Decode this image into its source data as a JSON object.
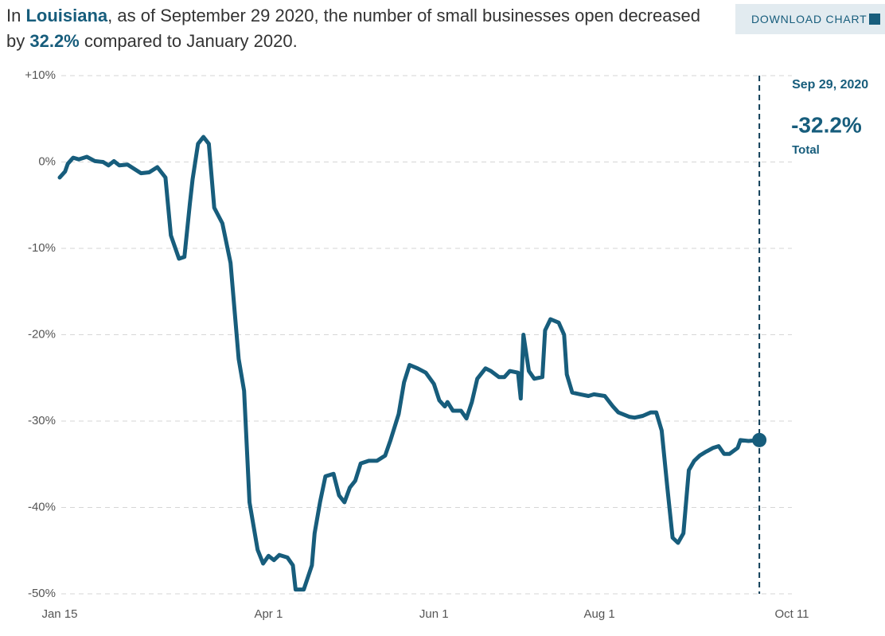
{
  "header": {
    "title_parts": [
      "In ",
      "Louisiana",
      ", as of September 29 2020, the number of small businesses open decreased by ",
      "32.2%",
      " compared to January 2020."
    ],
    "button": "DOWNLOAD CHART"
  },
  "chart_data": {
    "type": "line",
    "color": "#175d7c",
    "grid": true,
    "annotation": {
      "date": "Sep 29, 2020",
      "value_label": "-32.2%",
      "label": "Total"
    },
    "xlim": [
      "Jan 15",
      "Oct 11"
    ],
    "xticks": [
      "Jan 15",
      "Apr 1",
      "Jun 1",
      "Aug 1",
      "Oct 11"
    ],
    "ylim": [
      -50,
      10
    ],
    "yticks": [
      {
        "value": 10,
        "label": "+10%"
      },
      {
        "value": 0,
        "label": "0%"
      },
      {
        "value": -10,
        "label": "-10%"
      },
      {
        "value": -20,
        "label": "-20%"
      },
      {
        "value": -30,
        "label": "-30%"
      },
      {
        "value": -40,
        "label": "-40%"
      },
      {
        "value": -50,
        "label": "-50%"
      }
    ],
    "x": [
      "Jan 15",
      "Jan 17",
      "Jan 18",
      "Jan 20",
      "Jan 22",
      "Jan 25",
      "Jan 28",
      "Jan 31",
      "Feb 2",
      "Feb 4",
      "Feb 6",
      "Feb 9",
      "Feb 11",
      "Feb 14",
      "Feb 17",
      "Feb 20",
      "Feb 23",
      "Feb 25",
      "Feb 28",
      "Mar 1",
      "Mar 3",
      "Mar 4",
      "Mar 6",
      "Mar 8",
      "Mar 10",
      "Mar 12",
      "Mar 15",
      "Mar 18",
      "Mar 21",
      "Mar 23",
      "Mar 25",
      "Mar 28",
      "Mar 30",
      "Apr 1",
      "Apr 3",
      "Apr 5",
      "Apr 8",
      "Apr 10",
      "Apr 11",
      "Apr 14",
      "Apr 17",
      "Apr 18",
      "Apr 20",
      "Apr 22",
      "Apr 25",
      "Apr 27",
      "Apr 29",
      "May 1",
      "May 3",
      "May 5",
      "May 8",
      "May 11",
      "May 14",
      "May 16",
      "May 19",
      "May 21",
      "May 23",
      "May 26",
      "May 29",
      "Jun 1",
      "Jun 3",
      "Jun 5",
      "Jun 6",
      "Jun 8",
      "Jun 11",
      "Jun 13",
      "Jun 15",
      "Jun 17",
      "Jun 20",
      "Jun 22",
      "Jun 25",
      "Jun 27",
      "Jun 29",
      "Jul 2",
      "Jul 3",
      "Jul 4",
      "Jul 6",
      "Jul 8",
      "Jul 11",
      "Jul 12",
      "Jul 14",
      "Jul 17",
      "Jul 19",
      "Jul 20",
      "Jul 22",
      "Jul 25",
      "Jul 28",
      "Jul 30",
      "Aug 3",
      "Aug 6",
      "Aug 8",
      "Aug 12",
      "Aug 14",
      "Aug 17",
      "Aug 20",
      "Aug 22",
      "Aug 24",
      "Aug 26",
      "Aug 28",
      "Aug 30",
      "Sep 1",
      "Sep 3",
      "Sep 5",
      "Sep 7",
      "Sep 9",
      "Sep 12",
      "Sep 14",
      "Sep 16",
      "Sep 18",
      "Sep 21",
      "Sep 22",
      "Sep 25",
      "Sep 29"
    ],
    "values": [
      -1.8,
      -1.1,
      -0.2,
      0.5,
      0.3,
      0.6,
      0.1,
      0,
      -0.4,
      0.1,
      -0.4,
      -0.3,
      -0.7,
      -1.3,
      -1.2,
      -0.6,
      -1.8,
      -8.5,
      -11.2,
      -11,
      -4.8,
      -2,
      2.1,
      2.9,
      2.1,
      -5.3,
      -7.1,
      -11.7,
      -22.8,
      -26.5,
      -39.4,
      -44.9,
      -46.5,
      -45.6,
      -46.1,
      -45.5,
      -45.8,
      -46.7,
      -49.5,
      -49.5,
      -46.7,
      -43,
      -39.4,
      -36.4,
      -36.1,
      -38.6,
      -39.4,
      -37.7,
      -36.9,
      -34.9,
      -34.6,
      -34.6,
      -34,
      -32.2,
      -29.2,
      -25.5,
      -23.5,
      -23.9,
      -24.4,
      -25.7,
      -27.6,
      -28.3,
      -27.8,
      -28.8,
      -28.8,
      -29.7,
      -27.8,
      -25.1,
      -23.9,
      -24.2,
      -24.9,
      -24.9,
      -24.2,
      -24.4,
      -27.4,
      -20,
      -24.2,
      -25.1,
      -24.9,
      -19.5,
      -18.2,
      -18.6,
      -20,
      -24.6,
      -26.7,
      -26.9,
      -27.1,
      -26.9,
      -27.1,
      -28.3,
      -29,
      -29.5,
      -29.6,
      -29.4,
      -29,
      -29,
      -31.1,
      -37.5,
      -43.5,
      -44.1,
      -43,
      -35.7,
      -34.6,
      -34,
      -33.6,
      -33.1,
      -32.9,
      -33.8,
      -33.8,
      -33.1,
      -32.2,
      -32.3,
      -32.2
    ]
  }
}
